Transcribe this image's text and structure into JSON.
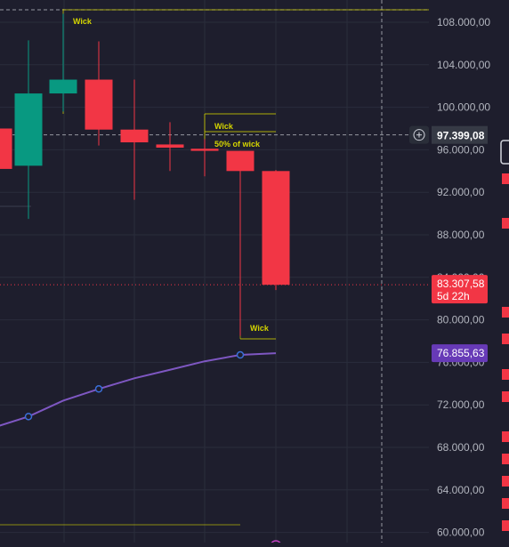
{
  "chart_data": {
    "type": "candlestick",
    "y_axis": {
      "range": [
        60000,
        109000
      ],
      "position": "right",
      "ticks": [
        "108.000,00",
        "104.000,00",
        "100.000,00",
        "96.000,00",
        "92.000,00",
        "88.000,00",
        "84.000,00",
        "80.000,00",
        "76.000,00",
        "72.000,00",
        "68.000,00",
        "64.000,00",
        "60.000,00"
      ],
      "tick_values": [
        108000,
        104000,
        100000,
        96000,
        92000,
        88000,
        84000,
        80000,
        76000,
        72000,
        68000,
        64000,
        60000
      ]
    },
    "grid": true,
    "candles": [
      {
        "open": 98000,
        "high": 98000,
        "low": 94200,
        "close": 94200
      },
      {
        "open": 94500,
        "high": 106300,
        "low": 89500,
        "close": 101300
      },
      {
        "open": 101300,
        "high": 108800,
        "low": 99600,
        "close": 102600
      },
      {
        "open": 102600,
        "high": 106200,
        "low": 96400,
        "close": 97900
      },
      {
        "open": 97900,
        "high": 102600,
        "low": 91300,
        "close": 96700
      },
      {
        "open": 96500,
        "high": 98600,
        "low": 94000,
        "close": 96200
      },
      {
        "open": 96100,
        "high": 97000,
        "low": 93500,
        "close": 95900
      },
      {
        "open": 95900,
        "high": 95900,
        "low": 78500,
        "close": 94000
      },
      {
        "open": 94000,
        "high": 94100,
        "low": 82800,
        "close": 83300
      }
    ],
    "moving_average": {
      "values": [
        70000,
        70900,
        72400,
        73500,
        74500,
        75300,
        76100,
        76700,
        76855.63
      ]
    },
    "annotations": [
      {
        "text": "Wick",
        "price": 108000
      },
      {
        "text": "Wick",
        "price": 98000
      },
      {
        "text": "50% of wick",
        "price": 97300
      },
      {
        "text": "Wick",
        "price": 78500
      }
    ],
    "crosshair": {
      "price": 97399.08,
      "label": "97.399,08"
    },
    "price_labels": [
      {
        "name": "last-price",
        "price": 83307.58,
        "text": "83.307,58",
        "subtext": "5d 22h",
        "color": "#f23645"
      },
      {
        "name": "ma-price",
        "price": 76855.63,
        "text": "76.855,63",
        "color": "#673ab7"
      }
    ]
  },
  "colors": {
    "background": "#1e1e2d",
    "grid": "#2a2d3c",
    "up": "#089981",
    "down": "#f23645",
    "ma": "#7e57c2",
    "annotation": "#d4d400",
    "axis_text": "#b2b5be"
  }
}
